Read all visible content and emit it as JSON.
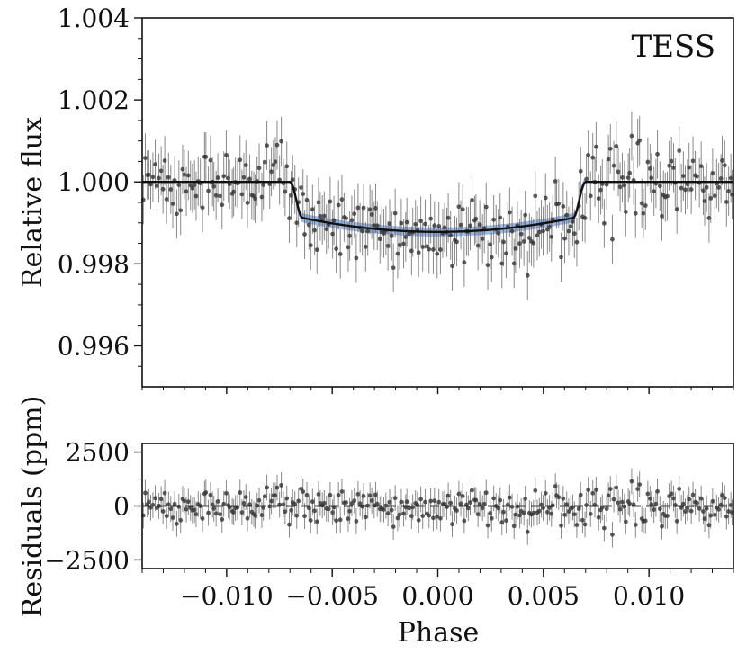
{
  "chart_data": [
    {
      "type": "scatter",
      "panel": "top",
      "annotation": "TESS",
      "ylabel": "Relative flux",
      "xlabel": "",
      "xlim": [
        -0.014,
        0.014
      ],
      "ylim": [
        0.995,
        1.004
      ],
      "yticks": [
        0.996,
        0.998,
        1.0,
        1.002,
        1.004
      ],
      "ytick_labels": [
        "0.996",
        "0.998",
        "1.000",
        "1.002",
        "1.004"
      ],
      "xticks": [
        -0.01,
        -0.005,
        0.0,
        0.005,
        0.01
      ],
      "grid": false,
      "model": {
        "baseline_flux": 1.0,
        "center_depth_flux": 0.99878,
        "ingress_start": -0.007,
        "ingress_end": -0.0064,
        "egress_start": 0.0064,
        "egress_end": 0.007,
        "line_color": "#111111",
        "band_color": "#4c7fd1"
      },
      "scatter": {
        "n_points": 300,
        "noise_sd": 0.00042,
        "error_bar": 0.0006,
        "color": "#333333"
      }
    },
    {
      "type": "scatter",
      "panel": "bottom",
      "ylabel": "Residuals (ppm)",
      "xlabel": "Phase",
      "xlim": [
        -0.014,
        0.014
      ],
      "ylim": [
        -2900,
        2900
      ],
      "yticks": [
        -2500,
        0,
        2500
      ],
      "ytick_labels": [
        "−2500",
        "0",
        "2500"
      ],
      "xticks": [
        -0.01,
        -0.005,
        0.0,
        0.005,
        0.01
      ],
      "xtick_labels": [
        "−0.010",
        "−0.005",
        "0.000",
        "0.005",
        "0.010"
      ],
      "grid": false,
      "zero_line": {
        "value": 0,
        "style": "dashed"
      },
      "scatter": {
        "n_points": 300,
        "noise_sd": 430,
        "error_bar": 600,
        "color": "#333333"
      }
    }
  ]
}
